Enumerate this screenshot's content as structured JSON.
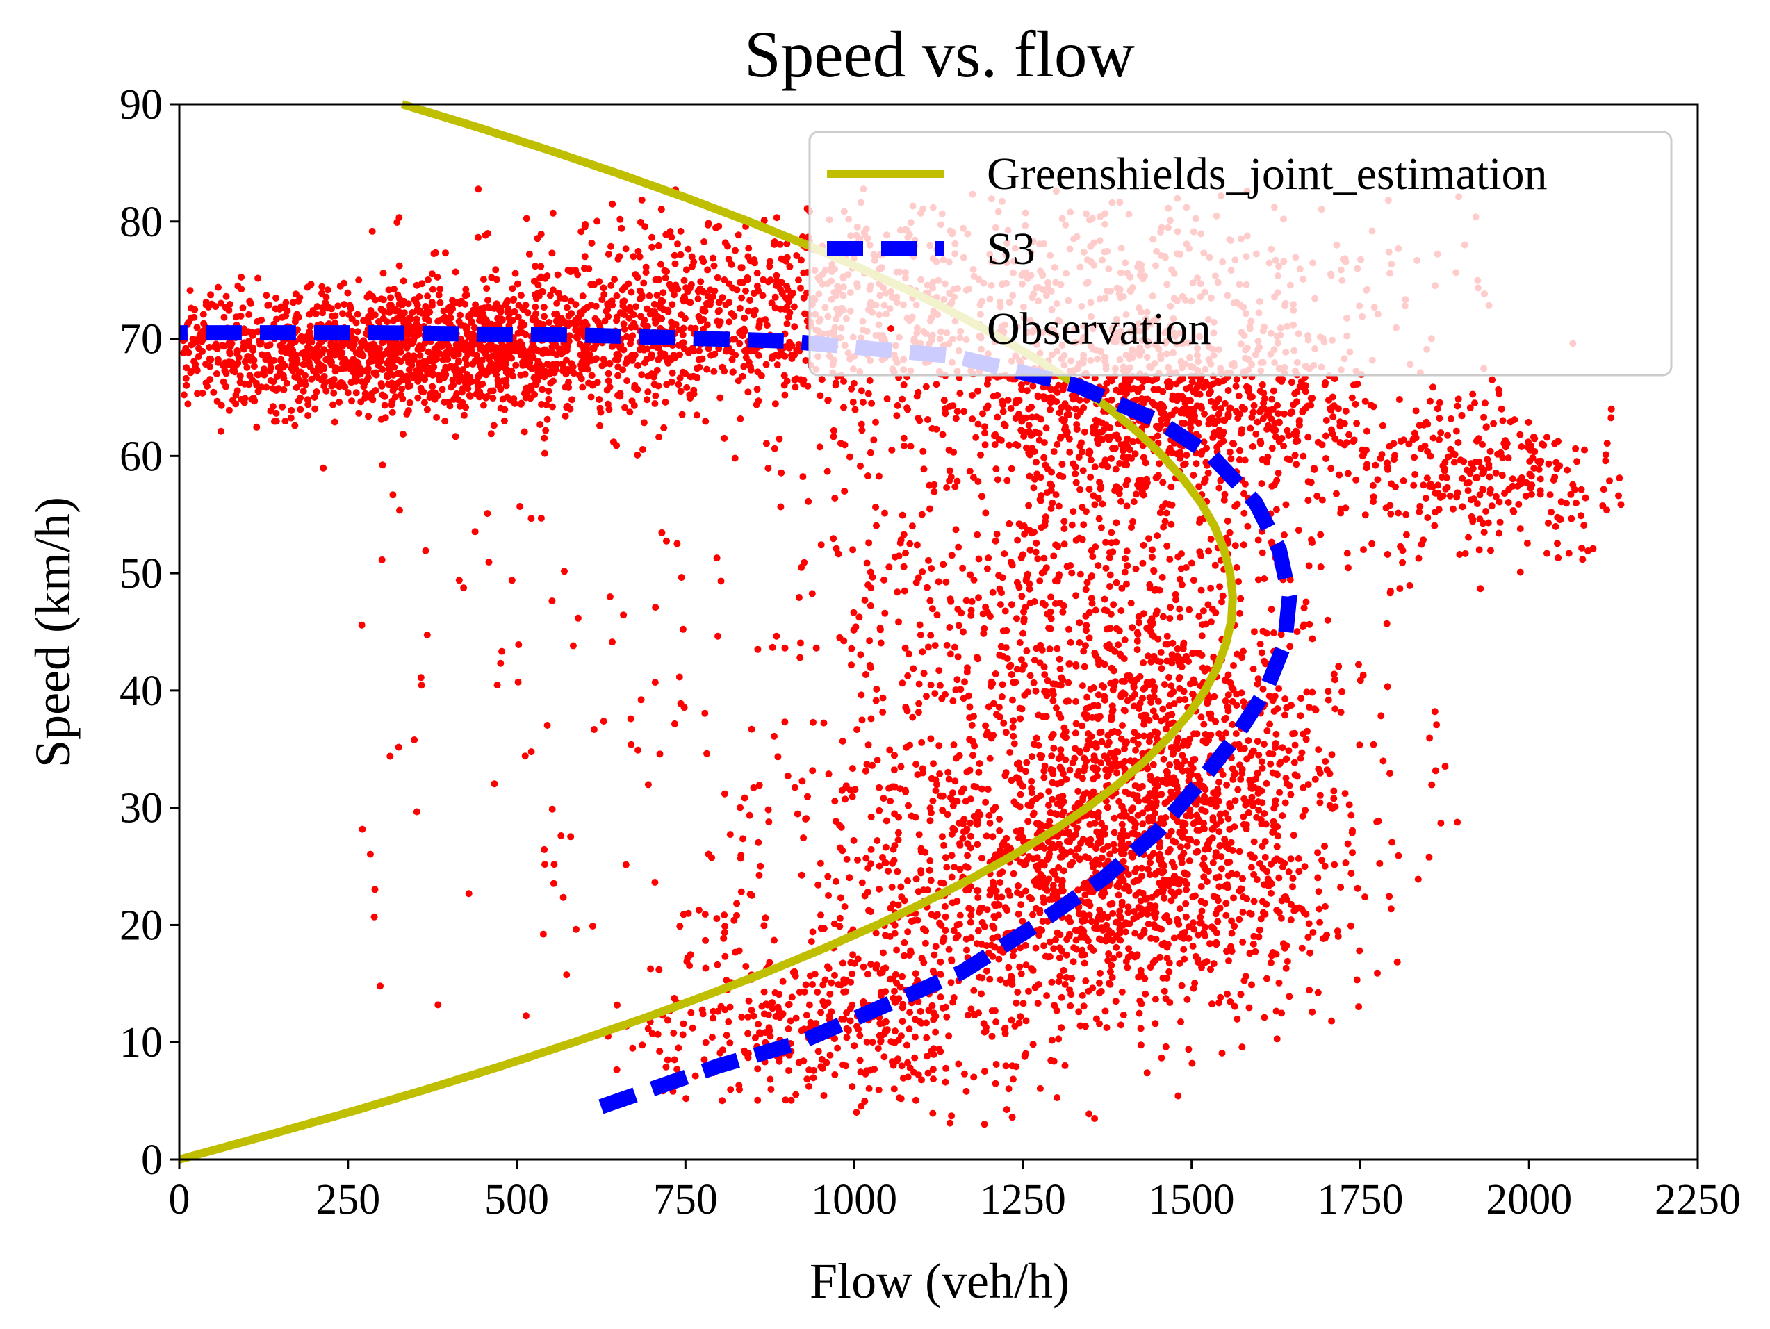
{
  "chart_data": {
    "type": "scatter",
    "title": "Speed vs. flow",
    "xlabel": "Flow (veh/h)",
    "ylabel": "Speed (km/h)",
    "xlim": [
      0,
      2250
    ],
    "ylim": [
      0,
      90
    ],
    "xticks": [
      0,
      250,
      500,
      750,
      1000,
      1250,
      1500,
      1750,
      2000,
      2250
    ],
    "yticks": [
      0,
      10,
      20,
      30,
      40,
      50,
      60,
      70,
      80,
      90
    ],
    "grid": false,
    "legend_position": "top-right",
    "series": [
      {
        "name": "Greenshields_joint_estimation",
        "kind": "line",
        "style": "solid",
        "color": "#bfbf00",
        "points": [
          [
            0,
            0
          ],
          [
            127,
            2
          ],
          [
            250,
            4
          ],
          [
            367,
            6
          ],
          [
            479,
            8
          ],
          [
            585,
            10
          ],
          [
            686,
            12
          ],
          [
            781,
            14
          ],
          [
            871,
            16
          ],
          [
            955,
            18
          ],
          [
            1034,
            20
          ],
          [
            1107,
            22
          ],
          [
            1175,
            24
          ],
          [
            1237,
            26
          ],
          [
            1294,
            28
          ],
          [
            1345,
            30
          ],
          [
            1391,
            32
          ],
          [
            1431,
            34
          ],
          [
            1466,
            36
          ],
          [
            1496,
            38
          ],
          [
            1520,
            40
          ],
          [
            1538,
            42
          ],
          [
            1551,
            44
          ],
          [
            1559,
            46
          ],
          [
            1561,
            48
          ],
          [
            1557,
            50
          ],
          [
            1548,
            52
          ],
          [
            1534,
            54
          ],
          [
            1514,
            56
          ],
          [
            1488,
            58
          ],
          [
            1457,
            60
          ],
          [
            1421,
            62
          ],
          [
            1379,
            64
          ],
          [
            1331,
            66
          ],
          [
            1278,
            68
          ],
          [
            1219,
            70
          ],
          [
            1155,
            72
          ],
          [
            1085,
            74
          ],
          [
            1010,
            76
          ],
          [
            930,
            78
          ],
          [
            844,
            80
          ],
          [
            752,
            82
          ],
          [
            655,
            84
          ],
          [
            552,
            86
          ],
          [
            444,
            88
          ],
          [
            330,
            90
          ]
        ]
      },
      {
        "name": "S3",
        "kind": "line",
        "style": "dashed",
        "color": "#0000ff",
        "points": [
          [
            625,
            4.5
          ],
          [
            700,
            6
          ],
          [
            800,
            8
          ],
          [
            920,
            10
          ],
          [
            1040,
            13
          ],
          [
            1160,
            16
          ],
          [
            1270,
            20
          ],
          [
            1370,
            24
          ],
          [
            1450,
            28
          ],
          [
            1510,
            32
          ],
          [
            1565,
            36
          ],
          [
            1610,
            40
          ],
          [
            1638,
            44
          ],
          [
            1645,
            48
          ],
          [
            1630,
            52
          ],
          [
            1595,
            56
          ],
          [
            1530,
            60
          ],
          [
            1450,
            63
          ],
          [
            1330,
            66
          ],
          [
            1150,
            68.5
          ],
          [
            900,
            69.8
          ],
          [
            600,
            70.3
          ],
          [
            300,
            70.5
          ],
          [
            0,
            70.5
          ]
        ]
      },
      {
        "name": "Observation",
        "kind": "scatter",
        "color": "#ff0000"
      }
    ]
  }
}
